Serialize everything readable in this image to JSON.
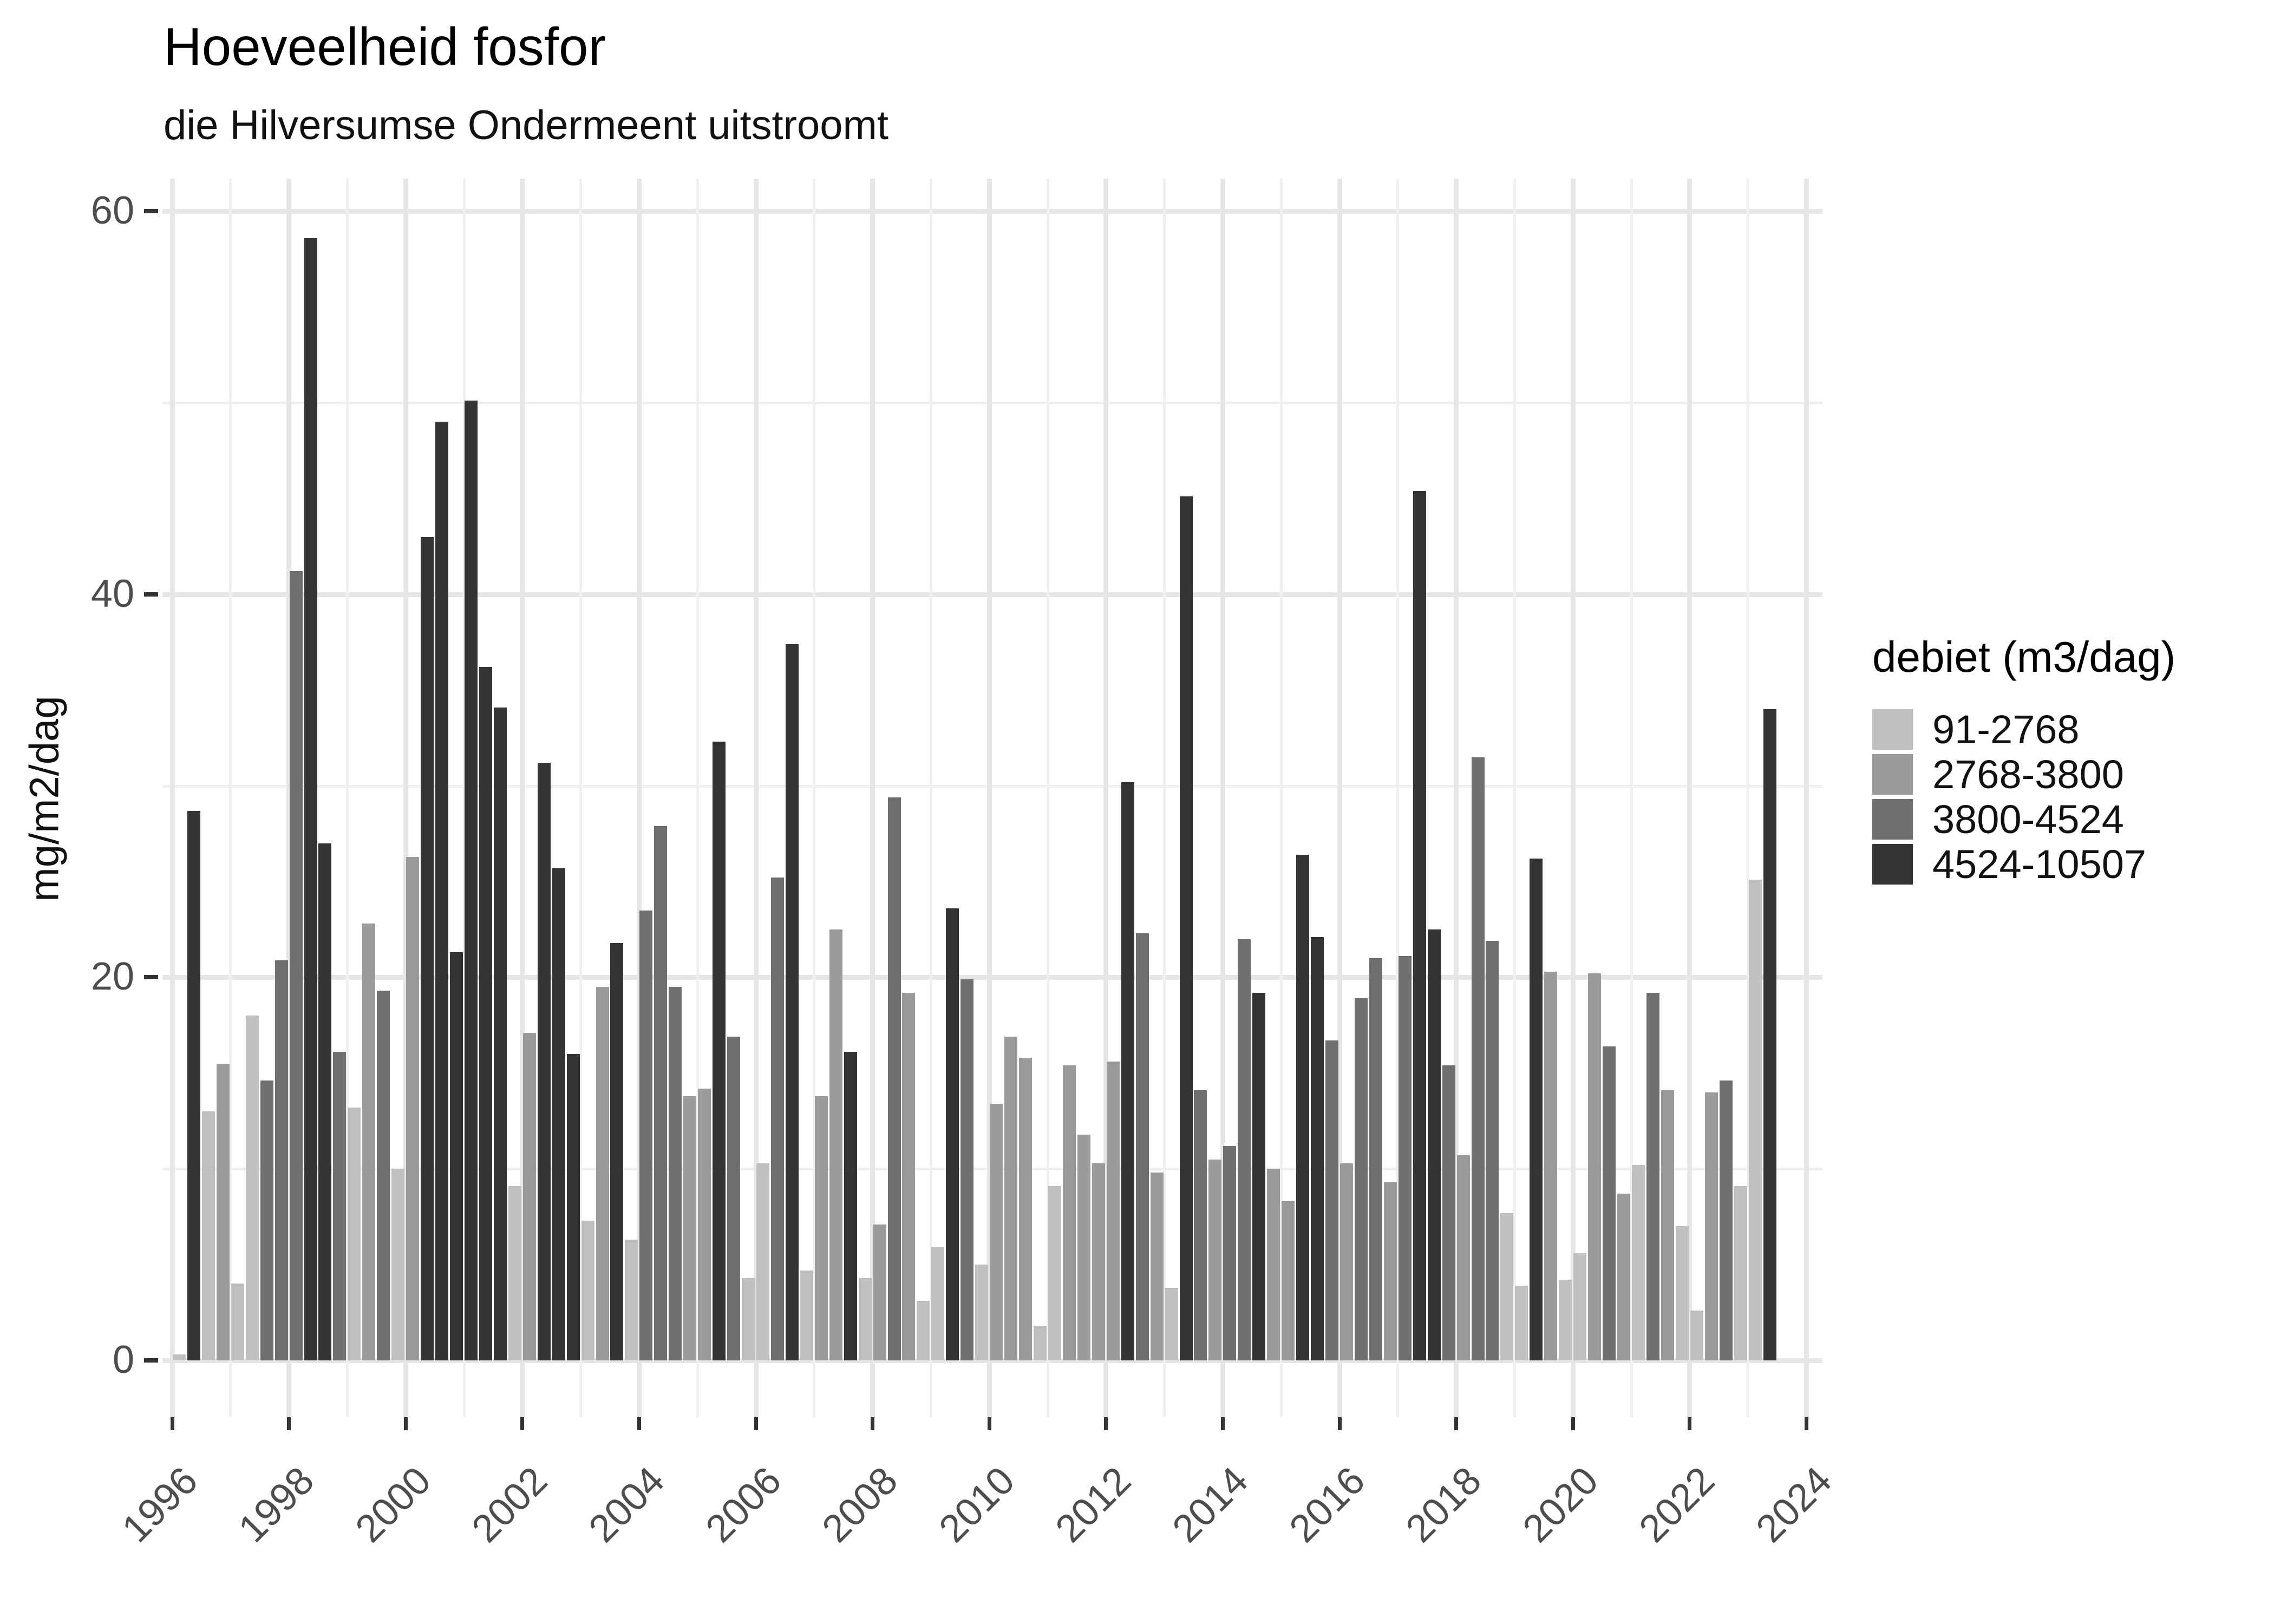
{
  "title": "Hoeveelheid fosfor",
  "subtitle": "die Hilversumse Ondermeent uitstroomt",
  "y_axis": {
    "label": "mg/m2/dag"
  },
  "legend": {
    "title": "debiet (m3/dag)",
    "items": [
      {
        "label": "91-2768",
        "color": "#bfbfbf"
      },
      {
        "label": "2768-3800",
        "color": "#9a9a9a"
      },
      {
        "label": "3800-4524",
        "color": "#6f6f6f"
      },
      {
        "label": "4524-10507",
        "color": "#333333"
      }
    ]
  },
  "chart_data": {
    "type": "bar",
    "title": "Hoeveelheid fosfor",
    "subtitle": "die Hilversumse Ondermeent uitstroomt",
    "xlabel": "",
    "ylabel": "mg/m2/dag",
    "ylim": [
      0,
      63
    ],
    "y_major_ticks": [
      0,
      20,
      40,
      60
    ],
    "y_minor_gridlines": [
      10,
      30,
      50
    ],
    "x_major_ticks": [
      1996,
      1998,
      2000,
      2002,
      2004,
      2006,
      2008,
      2010,
      2012,
      2014,
      2016,
      2018,
      2020,
      2022,
      2024
    ],
    "x_minor_gridlines": [
      1997,
      1999,
      2001,
      2003,
      2005,
      2007,
      2009,
      2011,
      2013,
      2015,
      2017,
      2019,
      2021,
      2023
    ],
    "x_range": [
      1995.75,
      2024.35
    ],
    "grid": true,
    "legend_position": "right",
    "series_name": "debiet (m3/dag)",
    "bins": [
      "91-2768",
      "2768-3800",
      "3800-4524",
      "4524-10507"
    ],
    "bars": [
      {
        "year": 1996,
        "q": 1,
        "value": 0.3,
        "bin": 0
      },
      {
        "year": 1996,
        "q": 2,
        "value": 28.7,
        "bin": 3
      },
      {
        "year": 1996,
        "q": 3,
        "value": 13.0,
        "bin": 0
      },
      {
        "year": 1996,
        "q": 4,
        "value": 15.5,
        "bin": 1
      },
      {
        "year": 1997,
        "q": 1,
        "value": 4.0,
        "bin": 0
      },
      {
        "year": 1997,
        "q": 2,
        "value": 18.0,
        "bin": 0
      },
      {
        "year": 1997,
        "q": 3,
        "value": 14.6,
        "bin": 2
      },
      {
        "year": 1997,
        "q": 4,
        "value": 20.9,
        "bin": 2
      },
      {
        "year": 1998,
        "q": 1,
        "value": 41.2,
        "bin": 2
      },
      {
        "year": 1998,
        "q": 2,
        "value": 58.6,
        "bin": 3
      },
      {
        "year": 1998,
        "q": 3,
        "value": 27.0,
        "bin": 3
      },
      {
        "year": 1998,
        "q": 4,
        "value": 16.1,
        "bin": 2
      },
      {
        "year": 1999,
        "q": 1,
        "value": 13.2,
        "bin": 0
      },
      {
        "year": 1999,
        "q": 2,
        "value": 22.8,
        "bin": 1
      },
      {
        "year": 1999,
        "q": 3,
        "value": 19.3,
        "bin": 2
      },
      {
        "year": 1999,
        "q": 4,
        "value": 10.0,
        "bin": 0
      },
      {
        "year": 2000,
        "q": 1,
        "value": 26.3,
        "bin": 1
      },
      {
        "year": 2000,
        "q": 2,
        "value": 43.0,
        "bin": 3
      },
      {
        "year": 2000,
        "q": 3,
        "value": 49.0,
        "bin": 3
      },
      {
        "year": 2000,
        "q": 4,
        "value": 21.3,
        "bin": 3
      },
      {
        "year": 2001,
        "q": 1,
        "value": 50.1,
        "bin": 3
      },
      {
        "year": 2001,
        "q": 2,
        "value": 36.2,
        "bin": 3
      },
      {
        "year": 2001,
        "q": 3,
        "value": 34.1,
        "bin": 3
      },
      {
        "year": 2001,
        "q": 4,
        "value": 9.1,
        "bin": 0
      },
      {
        "year": 2002,
        "q": 1,
        "value": 17.1,
        "bin": 1
      },
      {
        "year": 2002,
        "q": 2,
        "value": 31.2,
        "bin": 3
      },
      {
        "year": 2002,
        "q": 3,
        "value": 25.7,
        "bin": 3
      },
      {
        "year": 2002,
        "q": 4,
        "value": 16.0,
        "bin": 3
      },
      {
        "year": 2003,
        "q": 1,
        "value": 7.3,
        "bin": 0
      },
      {
        "year": 2003,
        "q": 2,
        "value": 19.5,
        "bin": 1
      },
      {
        "year": 2003,
        "q": 3,
        "value": 21.8,
        "bin": 3
      },
      {
        "year": 2003,
        "q": 4,
        "value": 6.3,
        "bin": 0
      },
      {
        "year": 2004,
        "q": 1,
        "value": 23.5,
        "bin": 2
      },
      {
        "year": 2004,
        "q": 2,
        "value": 27.9,
        "bin": 2
      },
      {
        "year": 2004,
        "q": 3,
        "value": 19.5,
        "bin": 2
      },
      {
        "year": 2004,
        "q": 4,
        "value": 13.8,
        "bin": 1
      },
      {
        "year": 2005,
        "q": 1,
        "value": 14.2,
        "bin": 1
      },
      {
        "year": 2005,
        "q": 2,
        "value": 32.3,
        "bin": 3
      },
      {
        "year": 2005,
        "q": 3,
        "value": 16.9,
        "bin": 2
      },
      {
        "year": 2005,
        "q": 4,
        "value": 4.3,
        "bin": 0
      },
      {
        "year": 2006,
        "q": 1,
        "value": 10.3,
        "bin": 0
      },
      {
        "year": 2006,
        "q": 2,
        "value": 25.2,
        "bin": 2
      },
      {
        "year": 2006,
        "q": 3,
        "value": 37.4,
        "bin": 3
      },
      {
        "year": 2006,
        "q": 4,
        "value": 4.7,
        "bin": 0
      },
      {
        "year": 2007,
        "q": 1,
        "value": 13.8,
        "bin": 1
      },
      {
        "year": 2007,
        "q": 2,
        "value": 22.5,
        "bin": 1
      },
      {
        "year": 2007,
        "q": 3,
        "value": 16.1,
        "bin": 3
      },
      {
        "year": 2007,
        "q": 4,
        "value": 4.3,
        "bin": 0
      },
      {
        "year": 2008,
        "q": 1,
        "value": 7.1,
        "bin": 1
      },
      {
        "year": 2008,
        "q": 2,
        "value": 29.4,
        "bin": 2
      },
      {
        "year": 2008,
        "q": 3,
        "value": 19.2,
        "bin": 1
      },
      {
        "year": 2008,
        "q": 4,
        "value": 3.1,
        "bin": 0
      },
      {
        "year": 2009,
        "q": 1,
        "value": 5.9,
        "bin": 0
      },
      {
        "year": 2009,
        "q": 2,
        "value": 23.6,
        "bin": 3
      },
      {
        "year": 2009,
        "q": 3,
        "value": 19.9,
        "bin": 2
      },
      {
        "year": 2009,
        "q": 4,
        "value": 5.0,
        "bin": 0
      },
      {
        "year": 2010,
        "q": 1,
        "value": 13.4,
        "bin": 1
      },
      {
        "year": 2010,
        "q": 2,
        "value": 16.9,
        "bin": 1
      },
      {
        "year": 2010,
        "q": 3,
        "value": 15.8,
        "bin": 1
      },
      {
        "year": 2010,
        "q": 4,
        "value": 1.8,
        "bin": 0
      },
      {
        "year": 2011,
        "q": 1,
        "value": 9.1,
        "bin": 0
      },
      {
        "year": 2011,
        "q": 2,
        "value": 15.4,
        "bin": 1
      },
      {
        "year": 2011,
        "q": 3,
        "value": 11.8,
        "bin": 1
      },
      {
        "year": 2011,
        "q": 4,
        "value": 10.3,
        "bin": 1
      },
      {
        "year": 2012,
        "q": 1,
        "value": 15.6,
        "bin": 1
      },
      {
        "year": 2012,
        "q": 2,
        "value": 30.2,
        "bin": 3
      },
      {
        "year": 2012,
        "q": 3,
        "value": 22.3,
        "bin": 2
      },
      {
        "year": 2012,
        "q": 4,
        "value": 9.8,
        "bin": 1
      },
      {
        "year": 2013,
        "q": 1,
        "value": 3.8,
        "bin": 0
      },
      {
        "year": 2013,
        "q": 2,
        "value": 45.1,
        "bin": 3
      },
      {
        "year": 2013,
        "q": 3,
        "value": 14.1,
        "bin": 2
      },
      {
        "year": 2013,
        "q": 4,
        "value": 10.5,
        "bin": 1
      },
      {
        "year": 2014,
        "q": 1,
        "value": 11.2,
        "bin": 2
      },
      {
        "year": 2014,
        "q": 2,
        "value": 22.0,
        "bin": 2
      },
      {
        "year": 2014,
        "q": 3,
        "value": 19.2,
        "bin": 3
      },
      {
        "year": 2014,
        "q": 4,
        "value": 10.0,
        "bin": 1
      },
      {
        "year": 2015,
        "q": 1,
        "value": 8.3,
        "bin": 1
      },
      {
        "year": 2015,
        "q": 2,
        "value": 26.4,
        "bin": 3
      },
      {
        "year": 2015,
        "q": 3,
        "value": 22.1,
        "bin": 3
      },
      {
        "year": 2015,
        "q": 4,
        "value": 16.7,
        "bin": 2
      },
      {
        "year": 2016,
        "q": 1,
        "value": 10.3,
        "bin": 1
      },
      {
        "year": 2016,
        "q": 2,
        "value": 18.9,
        "bin": 2
      },
      {
        "year": 2016,
        "q": 3,
        "value": 21.0,
        "bin": 2
      },
      {
        "year": 2016,
        "q": 4,
        "value": 9.3,
        "bin": 1
      },
      {
        "year": 2017,
        "q": 1,
        "value": 21.1,
        "bin": 2
      },
      {
        "year": 2017,
        "q": 2,
        "value": 45.4,
        "bin": 3
      },
      {
        "year": 2017,
        "q": 3,
        "value": 22.5,
        "bin": 3
      },
      {
        "year": 2017,
        "q": 4,
        "value": 15.4,
        "bin": 2
      },
      {
        "year": 2018,
        "q": 1,
        "value": 10.7,
        "bin": 1
      },
      {
        "year": 2018,
        "q": 2,
        "value": 31.5,
        "bin": 2
      },
      {
        "year": 2018,
        "q": 3,
        "value": 21.9,
        "bin": 2
      },
      {
        "year": 2018,
        "q": 4,
        "value": 7.7,
        "bin": 0
      },
      {
        "year": 2019,
        "q": 1,
        "value": 3.9,
        "bin": 0
      },
      {
        "year": 2019,
        "q": 2,
        "value": 26.2,
        "bin": 3
      },
      {
        "year": 2019,
        "q": 3,
        "value": 20.3,
        "bin": 1
      },
      {
        "year": 2019,
        "q": 4,
        "value": 4.2,
        "bin": 0
      },
      {
        "year": 2020,
        "q": 1,
        "value": 5.6,
        "bin": 0
      },
      {
        "year": 2020,
        "q": 2,
        "value": 20.2,
        "bin": 1
      },
      {
        "year": 2020,
        "q": 3,
        "value": 16.4,
        "bin": 2
      },
      {
        "year": 2020,
        "q": 4,
        "value": 8.7,
        "bin": 1
      },
      {
        "year": 2021,
        "q": 1,
        "value": 10.2,
        "bin": 0
      },
      {
        "year": 2021,
        "q": 2,
        "value": 19.2,
        "bin": 2
      },
      {
        "year": 2021,
        "q": 3,
        "value": 14.1,
        "bin": 1
      },
      {
        "year": 2021,
        "q": 4,
        "value": 7.0,
        "bin": 0
      },
      {
        "year": 2022,
        "q": 1,
        "value": 2.6,
        "bin": 0
      },
      {
        "year": 2022,
        "q": 2,
        "value": 14.0,
        "bin": 1
      },
      {
        "year": 2022,
        "q": 3,
        "value": 14.6,
        "bin": 2
      },
      {
        "year": 2022,
        "q": 4,
        "value": 9.1,
        "bin": 0
      },
      {
        "year": 2023,
        "q": 1,
        "value": 25.1,
        "bin": 0
      },
      {
        "year": 2023,
        "q": 2,
        "value": 34.0,
        "bin": 3
      }
    ]
  }
}
